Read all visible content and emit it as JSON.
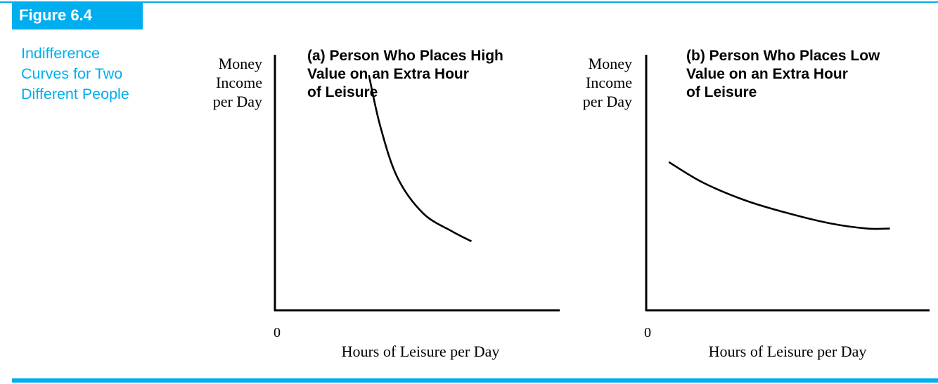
{
  "figure": {
    "label": "Figure 6.4",
    "caption_lines": [
      "Indifference",
      "Curves for Two",
      "Different People"
    ],
    "accent_color": "#00aeef"
  },
  "chart_data": [
    {
      "type": "line",
      "title_lines": [
        "(a) Person Who Places High",
        "Value on an Extra Hour",
        "of Leisure"
      ],
      "ylabel_lines": [
        "Money",
        "Income",
        "per Day"
      ],
      "xlabel": "Hours of Leisure per Day",
      "origin_label": "0",
      "grid": false,
      "series": [
        {
          "points": [
            [
              0.33,
              0.92
            ],
            [
              0.37,
              0.72
            ],
            [
              0.43,
              0.52
            ],
            [
              0.52,
              0.38
            ],
            [
              0.62,
              0.31
            ],
            [
              0.69,
              0.27
            ]
          ]
        }
      ]
    },
    {
      "type": "line",
      "title_lines": [
        "(b) Person Who Places Low",
        "Value on an Extra Hour",
        "of Leisure"
      ],
      "ylabel_lines": [
        "Money",
        "Income",
        "per Day"
      ],
      "xlabel": "Hours of Leisure per Day",
      "origin_label": "0",
      "grid": false,
      "series": [
        {
          "points": [
            [
              0.08,
              0.58
            ],
            [
              0.2,
              0.5
            ],
            [
              0.35,
              0.43
            ],
            [
              0.5,
              0.38
            ],
            [
              0.65,
              0.34
            ],
            [
              0.78,
              0.32
            ],
            [
              0.86,
              0.32
            ]
          ]
        }
      ]
    }
  ]
}
